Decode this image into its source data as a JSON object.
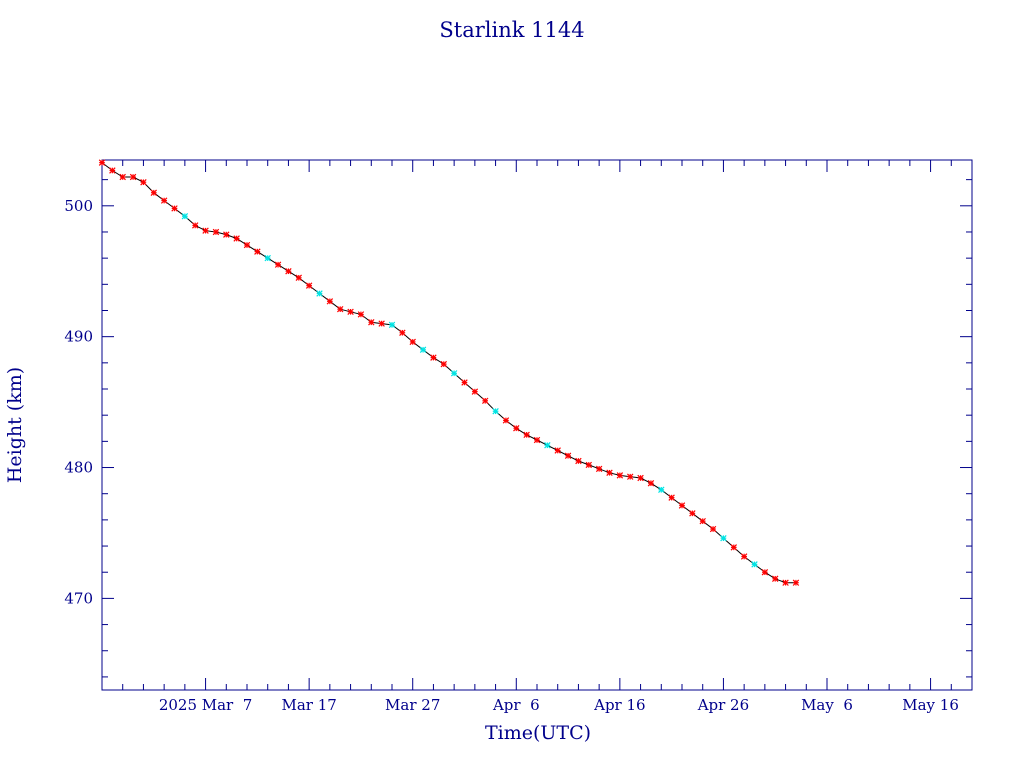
{
  "chart_data": {
    "type": "line",
    "title": "Starlink 1144",
    "xlabel": "Time(UTC)",
    "ylabel": "Height (km)",
    "ylim": [
      463,
      503.5
    ],
    "xlim": [
      "2025-02-25",
      "2025-05-20"
    ],
    "x_tick_labels": [
      {
        "date": "2025-03-07",
        "label": "2025 Mar  7"
      },
      {
        "date": "2025-03-17",
        "label": "Mar 17"
      },
      {
        "date": "2025-03-27",
        "label": "Mar 27"
      },
      {
        "date": "2025-04-06",
        "label": "Apr  6"
      },
      {
        "date": "2025-04-16",
        "label": "Apr 16"
      },
      {
        "date": "2025-04-26",
        "label": "Apr 26"
      },
      {
        "date": "2025-05-06",
        "label": "May  6"
      },
      {
        "date": "2025-05-16",
        "label": "May 16"
      }
    ],
    "y_tick_labels": [
      470,
      480,
      490,
      500
    ],
    "grid": false,
    "colors": {
      "axes": "#00008b",
      "text": "#00008b",
      "line": "#000000",
      "marker_primary": "#ff0000",
      "marker_secondary": "#00e5e5"
    },
    "series": [
      {
        "x": [
          "2025-02-25",
          "2025-02-26",
          "2025-02-27",
          "2025-02-28",
          "2025-03-01",
          "2025-03-02",
          "2025-03-03",
          "2025-03-04",
          "2025-03-05",
          "2025-03-06",
          "2025-03-07",
          "2025-03-08",
          "2025-03-09",
          "2025-03-10",
          "2025-03-11",
          "2025-03-12",
          "2025-03-13",
          "2025-03-14",
          "2025-03-15",
          "2025-03-16",
          "2025-03-17",
          "2025-03-18",
          "2025-03-19",
          "2025-03-20",
          "2025-03-21",
          "2025-03-22",
          "2025-03-23",
          "2025-03-24",
          "2025-03-25",
          "2025-03-26",
          "2025-03-27",
          "2025-03-28",
          "2025-03-29",
          "2025-03-30",
          "2025-03-31",
          "2025-04-01",
          "2025-04-02",
          "2025-04-03",
          "2025-04-04",
          "2025-04-05",
          "2025-04-06",
          "2025-04-07",
          "2025-04-08",
          "2025-04-09",
          "2025-04-10",
          "2025-04-11",
          "2025-04-12",
          "2025-04-13",
          "2025-04-14",
          "2025-04-15",
          "2025-04-16",
          "2025-04-17",
          "2025-04-18",
          "2025-04-19",
          "2025-04-20",
          "2025-04-21",
          "2025-04-22",
          "2025-04-23",
          "2025-04-24",
          "2025-04-25",
          "2025-04-26",
          "2025-04-27",
          "2025-04-28",
          "2025-04-29",
          "2025-04-30",
          "2025-05-01",
          "2025-05-02",
          "2025-05-03"
        ],
        "y": [
          503.3,
          502.7,
          502.2,
          502.2,
          501.8,
          501.0,
          500.4,
          499.8,
          499.2,
          498.5,
          498.1,
          498.0,
          497.8,
          497.5,
          497.0,
          496.5,
          496.0,
          495.5,
          495.0,
          494.5,
          493.9,
          493.3,
          492.7,
          492.1,
          491.9,
          491.7,
          491.1,
          491.0,
          490.9,
          490.3,
          489.6,
          489.0,
          488.4,
          487.9,
          487.2,
          486.5,
          485.8,
          485.1,
          484.3,
          483.6,
          483.0,
          482.5,
          482.1,
          481.7,
          481.3,
          480.9,
          480.5,
          480.2,
          479.9,
          479.6,
          479.4,
          479.3,
          479.2,
          478.8,
          478.3,
          477.7,
          477.1,
          476.5,
          475.9,
          475.3,
          474.6,
          473.9,
          473.2,
          472.6,
          472.0,
          471.5,
          471.2,
          471.2
        ],
        "secondary_marker_dates": [
          "2025-03-05",
          "2025-03-13",
          "2025-03-18",
          "2025-03-25",
          "2025-03-28",
          "2025-03-31",
          "2025-04-04",
          "2025-04-09",
          "2025-04-20",
          "2025-04-26",
          "2025-04-29"
        ]
      }
    ]
  }
}
